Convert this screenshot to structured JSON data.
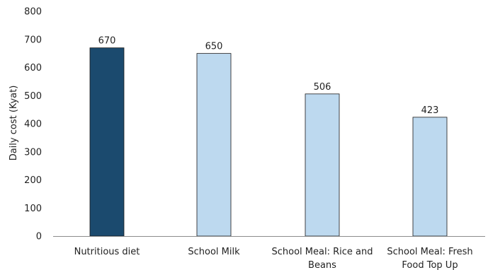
{
  "chart_data": {
    "type": "bar",
    "title": "",
    "xlabel": "",
    "ylabel": "Daily cost (Kyat)",
    "ylim": [
      0,
      800
    ],
    "yticks": [
      0,
      100,
      200,
      300,
      400,
      500,
      600,
      700,
      800
    ],
    "grid": false,
    "legend": "none",
    "categories": [
      [
        "Nutritious diet"
      ],
      [
        "School Milk"
      ],
      [
        "School Meal: Rice and",
        "Beans"
      ],
      [
        "School Meal: Fresh",
        "Food Top Up"
      ]
    ],
    "values": [
      670,
      650,
      506,
      423
    ],
    "value_labels": [
      "670",
      "650",
      "506",
      "423"
    ],
    "colors": [
      "#1b4a6e",
      "#bdd9ef",
      "#bdd9ef",
      "#bdd9ef"
    ],
    "bar_stroke": "#1a1a1a",
    "axis_color": "#8c8c8c"
  }
}
